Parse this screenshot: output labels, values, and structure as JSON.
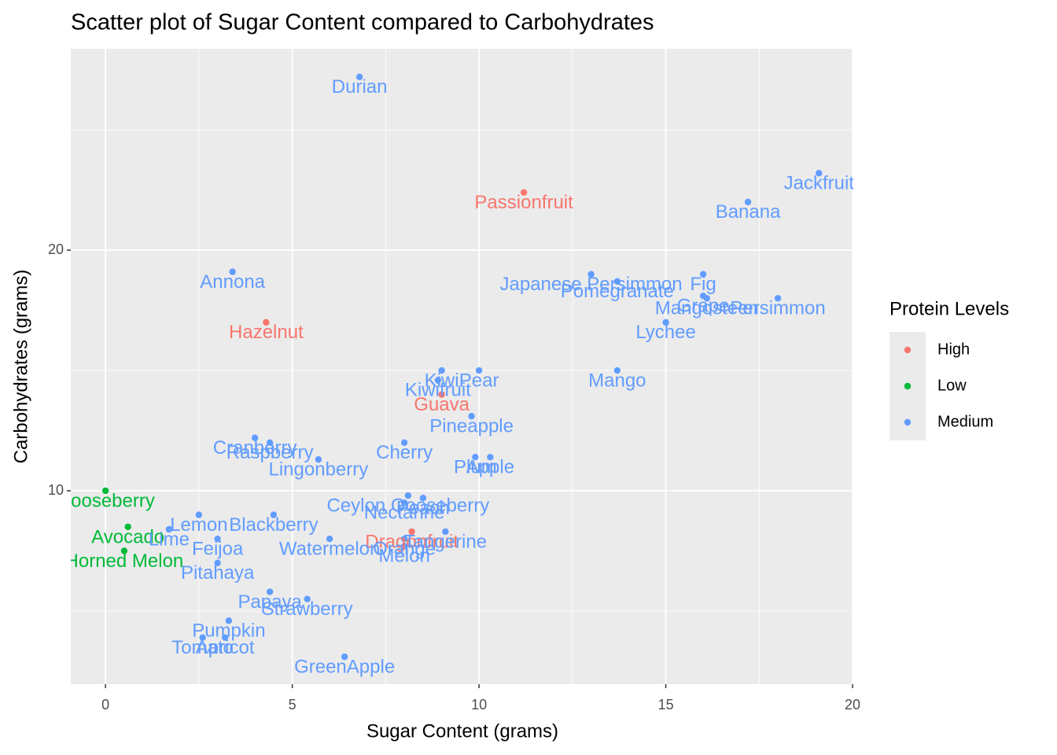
{
  "chart_data": {
    "type": "scatter",
    "title": "Scatter plot of Sugar Content compared to Carbohydrates",
    "x_label": "Sugar Content (grams)",
    "y_label": "Carbohydrates (grams)",
    "legend_title": "Protein Levels",
    "xlim": [
      -0.93,
      20.02
    ],
    "ylim": [
      1.96,
      28.37
    ],
    "xticks": [
      0,
      5,
      10,
      15,
      20
    ],
    "yticks": [
      10,
      20
    ],
    "grid": true,
    "series": [
      {
        "name": "High",
        "color": "#F8766D",
        "x": [
          11.2,
          4.3,
          9.0,
          8.2
        ],
        "values": [
          22.4,
          17.0,
          14.0,
          8.3
        ],
        "labels": [
          "Passionfruit",
          "Hazelnut",
          "Guava",
          "Dragonfruit"
        ]
      },
      {
        "name": "Low",
        "color": "#00BA38",
        "x": [
          0,
          0.6,
          0.5
        ],
        "values": [
          10.0,
          8.5,
          7.5
        ],
        "labels": [
          "Gooseberry",
          "Avocado",
          "Horned Melon"
        ]
      },
      {
        "name": "Medium",
        "color": "#619CFF",
        "x": [
          6.8,
          19.1,
          17.2,
          3.4,
          13.0,
          13.7,
          16.0,
          16.0,
          16.1,
          18.0,
          15.0,
          13.7,
          9.0,
          10.0,
          8.9,
          9.8,
          8.0,
          4.0,
          4.4,
          5.7,
          9.9,
          10.3,
          2.5,
          1.7,
          4.5,
          3.0,
          3.0,
          6.0,
          8.1,
          8.0,
          8.5,
          8.0,
          9.1,
          8.0,
          4.4,
          5.4,
          3.3,
          2.6,
          3.2,
          6.4
        ],
        "values": [
          27.2,
          23.2,
          22.0,
          19.1,
          19.0,
          18.7,
          19.0,
          18.1,
          18.0,
          18.0,
          17.0,
          15.0,
          15.0,
          15.0,
          14.6,
          13.1,
          12.0,
          12.2,
          12.0,
          11.3,
          11.4,
          11.4,
          9.0,
          8.4,
          9.0,
          8.0,
          7.0,
          8.0,
          9.8,
          9.5,
          9.7,
          8.0,
          8.3,
          7.7,
          5.8,
          5.5,
          4.6,
          3.9,
          3.9,
          3.1
        ],
        "labels": [
          "Durian",
          "Jackfruit",
          "Banana",
          "Annona",
          "Japanese Persimmon",
          "Pomegranate",
          "Fig",
          "Grape",
          "Mangosteen",
          "Persimmon",
          "Lychee",
          "Mango",
          "Kiwi",
          "Pear",
          "Kiwifruit",
          "Pineapple",
          "Cherry",
          "Cranberry",
          "Raspberry",
          "Lingonberry",
          "Plum",
          "Apple",
          "Lemon",
          "Lime",
          "Blackberry",
          "Feijoa",
          "Pitahaya",
          "Watermelon",
          "Ceylon Gooseberry",
          "Nectarine",
          "Peach",
          "Orange",
          "Tangerine",
          "Melon",
          "Papaya",
          "Strawberry",
          "Pumpkin",
          "Tomato",
          "Apricot",
          "GreenApple"
        ]
      }
    ]
  }
}
